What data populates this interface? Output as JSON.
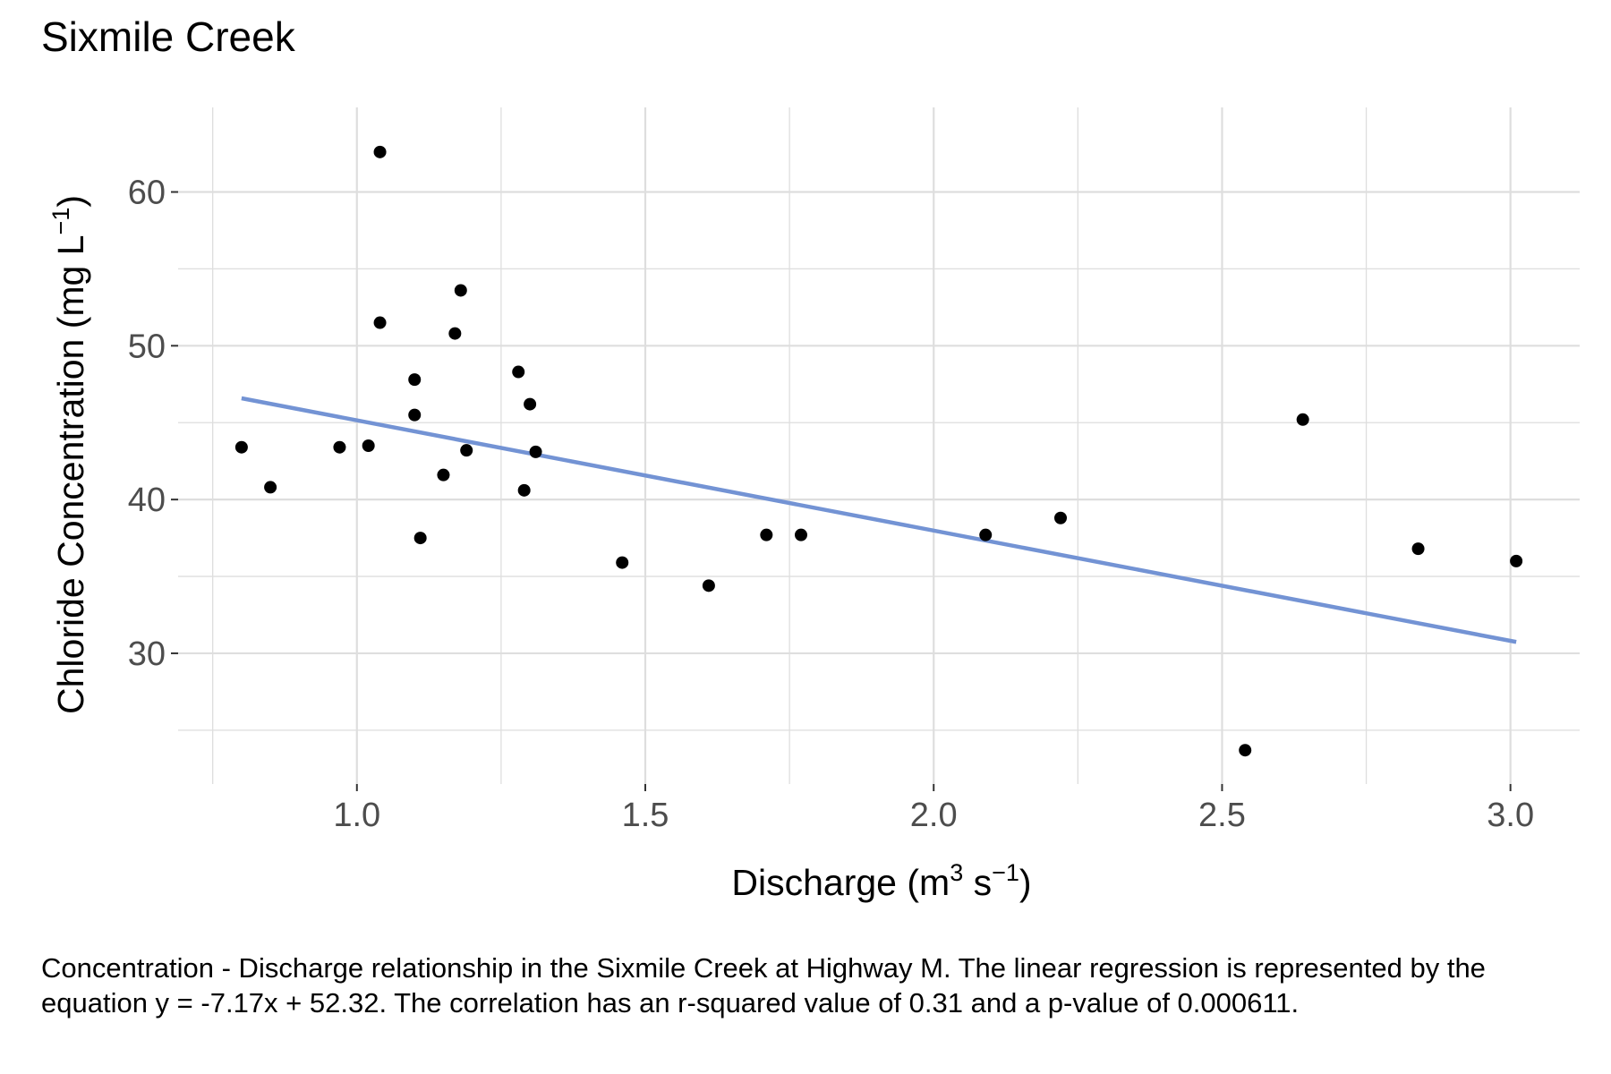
{
  "chart_data": {
    "type": "scatter",
    "title": "Sixmile Creek",
    "xlabel": {
      "base": "Discharge (m",
      "sup1": "3",
      "mid": " s",
      "sup2": "−1",
      "end": ")"
    },
    "ylabel": {
      "base": "Chloride Concentration (mg L",
      "sup": "−1",
      "end": ")"
    },
    "xlim": [
      0.69,
      3.12
    ],
    "ylim": [
      21.5,
      65.5
    ],
    "xticks": [
      1.0,
      1.5,
      2.0,
      2.5,
      3.0
    ],
    "xtick_labels": [
      "1.0",
      "1.5",
      "2.0",
      "2.5",
      "3.0"
    ],
    "yticks": [
      30,
      40,
      50,
      60
    ],
    "ytick_labels": [
      "30",
      "40",
      "50",
      "60"
    ],
    "x_minor_gridlines": [
      0.75,
      1.25,
      1.75,
      2.25,
      2.75
    ],
    "y_minor_gridlines": [
      25,
      35,
      45,
      55
    ],
    "grid": true,
    "points": [
      {
        "x": 0.8,
        "y": 43.4
      },
      {
        "x": 0.85,
        "y": 40.8
      },
      {
        "x": 0.97,
        "y": 43.4
      },
      {
        "x": 1.02,
        "y": 43.5
      },
      {
        "x": 1.04,
        "y": 62.6
      },
      {
        "x": 1.04,
        "y": 51.5
      },
      {
        "x": 1.1,
        "y": 47.8
      },
      {
        "x": 1.1,
        "y": 45.5
      },
      {
        "x": 1.11,
        "y": 37.5
      },
      {
        "x": 1.15,
        "y": 41.6
      },
      {
        "x": 1.17,
        "y": 50.8
      },
      {
        "x": 1.18,
        "y": 53.6
      },
      {
        "x": 1.19,
        "y": 43.2
      },
      {
        "x": 1.28,
        "y": 48.3
      },
      {
        "x": 1.29,
        "y": 40.6
      },
      {
        "x": 1.3,
        "y": 46.2
      },
      {
        "x": 1.31,
        "y": 43.1
      },
      {
        "x": 1.46,
        "y": 35.9
      },
      {
        "x": 1.61,
        "y": 34.4
      },
      {
        "x": 1.71,
        "y": 37.7
      },
      {
        "x": 1.77,
        "y": 37.7
      },
      {
        "x": 2.09,
        "y": 37.7
      },
      {
        "x": 2.22,
        "y": 38.8
      },
      {
        "x": 2.54,
        "y": 23.7
      },
      {
        "x": 2.64,
        "y": 45.2
      },
      {
        "x": 2.84,
        "y": 36.8
      },
      {
        "x": 3.01,
        "y": 36.0
      }
    ],
    "regression": {
      "slope": -7.17,
      "intercept": 52.32,
      "x_range": [
        0.8,
        3.01
      ]
    },
    "colors": {
      "points": "#000000",
      "regression_line": "#7393d4",
      "grid": "#dedede"
    }
  },
  "caption": "Concentration - Discharge relationship in the Sixmile Creek at Highway M. The linear regression is represented by the equation y = -7.17x + 52.32. The correlation has an r-squared value of 0.31 and a p-value of 0.000611."
}
